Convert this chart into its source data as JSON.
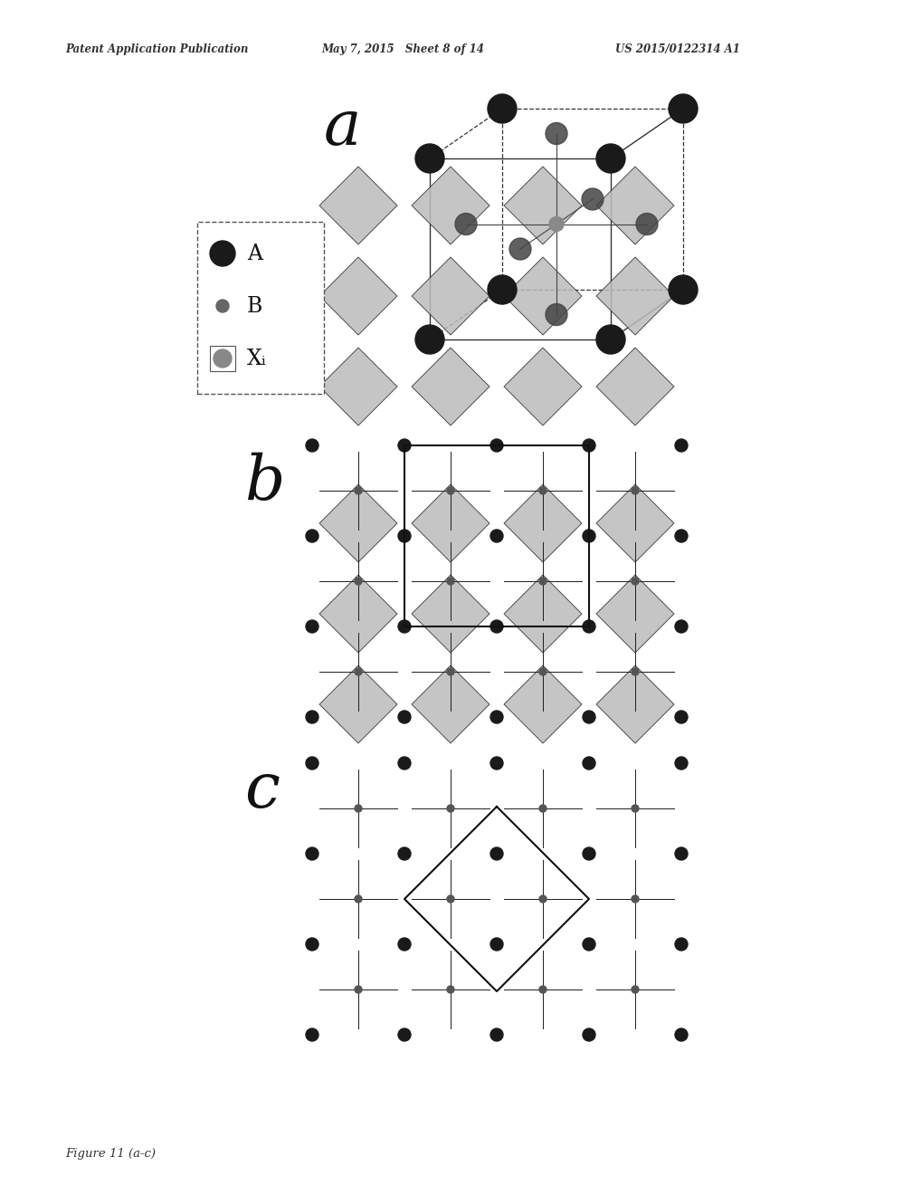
{
  "header_left": "Patent Application Publication",
  "header_center": "May 7, 2015   Sheet 8 of 14",
  "header_right": "US 2015/0122314 A1",
  "label_a": "a",
  "label_b": "b",
  "label_c": "c",
  "figure_caption": "Figure 11 (a-c)",
  "bg_color": "#ffffff",
  "atom_A_color": "#1a1a1a",
  "atom_B_color": "#666666",
  "atom_X_color": "#999999",
  "oct_fill_color": "#cccccc",
  "oct_edge_color": "#333333"
}
